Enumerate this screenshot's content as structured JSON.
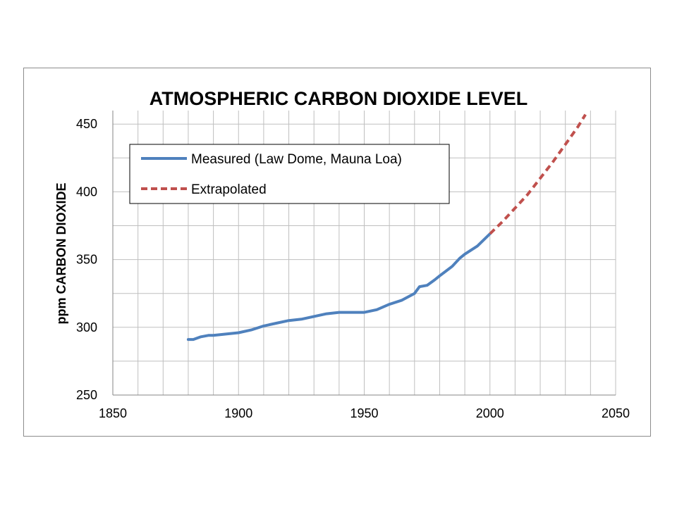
{
  "chart_data": {
    "type": "line",
    "title": "ATMOSPHERIC CARBON DIOXIDE LEVEL",
    "xlabel": "",
    "ylabel": "ppm CARBON DIOXIDE",
    "xlim": [
      1850,
      2050
    ],
    "ylim": [
      250,
      460
    ],
    "x_ticks": [
      1850,
      1900,
      1950,
      2000,
      2050
    ],
    "y_ticks": [
      250,
      300,
      350,
      400,
      450
    ],
    "x_grid_step": 10,
    "y_grid_step": 25,
    "grid": true,
    "legend_position": "upper-left",
    "series": [
      {
        "name": "Measured (Law Dome, Mauna Loa)",
        "color": "#4f81bd",
        "style": "solid",
        "x": [
          1880,
          1882,
          1885,
          1888,
          1890,
          1895,
          1900,
          1905,
          1910,
          1915,
          1920,
          1925,
          1930,
          1935,
          1940,
          1945,
          1950,
          1955,
          1960,
          1965,
          1970,
          1972,
          1975,
          1978,
          1980,
          1985,
          1988,
          1990,
          1995,
          2000
        ],
        "y": [
          291,
          291,
          293,
          294,
          294,
          295,
          296,
          298,
          301,
          303,
          305,
          306,
          308,
          310,
          311,
          311,
          311,
          313,
          317,
          320,
          325,
          330,
          331,
          335,
          338,
          345,
          351,
          354,
          360,
          369
        ]
      },
      {
        "name": "Extrapolated",
        "color": "#c0504d",
        "style": "dashed",
        "x": [
          2000,
          2005,
          2010,
          2015,
          2020,
          2025,
          2030,
          2035,
          2038
        ],
        "y": [
          369,
          378,
          388,
          398,
          410,
          422,
          435,
          448,
          457
        ]
      }
    ]
  }
}
